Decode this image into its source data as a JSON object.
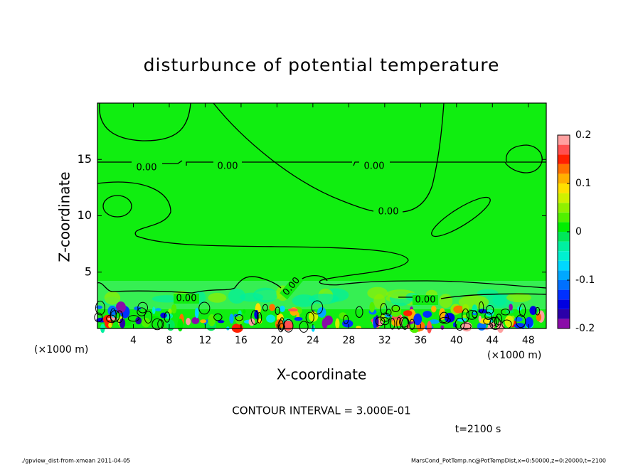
{
  "chart_data": {
    "type": "contour",
    "title": "disturbunce of potential temperature",
    "x_label": "X-coordinate",
    "y_label": "Z-coordinate",
    "x_unit": "(×1000 m)",
    "xlim": [
      0,
      50
    ],
    "xticks": [
      4,
      8,
      12,
      16,
      20,
      24,
      28,
      32,
      36,
      40,
      44,
      48
    ],
    "ylim": [
      0,
      20
    ],
    "yticks": [
      5,
      10,
      15
    ],
    "contour_interval": "CONTOUR INTERVAL = 3.000E-01",
    "time": "t=2100 s",
    "contour_labels": [
      {
        "value": 0,
        "label": "0.00"
      },
      {
        "value": 0,
        "label": "0.00"
      },
      {
        "value": 0,
        "label": "0.00"
      },
      {
        "value": 0,
        "label": "0.00"
      },
      {
        "value": 0,
        "label": "0.00"
      },
      {
        "value": 0,
        "label": "0.00"
      },
      {
        "value": 0,
        "label": "0.00"
      }
    ],
    "colorbar": {
      "levels": [
        -0.2,
        -0.18,
        -0.16,
        -0.14,
        -0.12,
        -0.1,
        -0.08,
        -0.06,
        -0.04,
        -0.02,
        0,
        0.02,
        0.04,
        0.06,
        0.08,
        0.1,
        0.12,
        0.14,
        0.16,
        0.18,
        0.2
      ],
      "colors": [
        "#8a0ca8",
        "#2a00a8",
        "#0000e0",
        "#0030ff",
        "#0070ff",
        "#00a8ff",
        "#00d8ff",
        "#00f0d0",
        "#00f0a0",
        "#00e858",
        "#00ee00",
        "#50f000",
        "#90f000",
        "#d0f000",
        "#ffe000",
        "#ffb000",
        "#ff7000",
        "#ff2000",
        "#ff5050",
        "#ffa0a0"
      ],
      "ticks": [
        -0.2,
        -0.1,
        0,
        0.1,
        0.2
      ]
    }
  },
  "footer": {
    "left": "./gpview_dist-from-xmean  2011-04-05",
    "right": "MarsCond_PotTemp.nc@PotTempDist,x=0:50000,z=0:20000,t=2100"
  }
}
